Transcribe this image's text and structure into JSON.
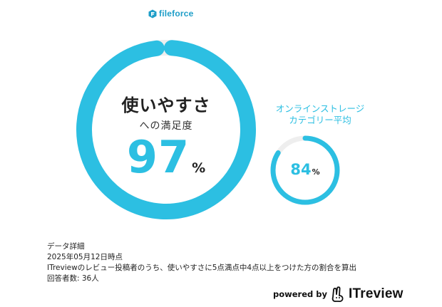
{
  "brand": {
    "logo_text": "fileforce",
    "logo_icon": "fileforce-logo-icon",
    "accent_color": "#2cbfe2"
  },
  "main_metric": {
    "title": "使いやすさ",
    "subtitle": "への満足度",
    "value": "97",
    "unit": "%",
    "percent": 97
  },
  "category_average": {
    "label_line1": "オンラインストレージ",
    "label_line2": "カテゴリー平均",
    "value": "84",
    "unit": "%",
    "percent": 84
  },
  "details": {
    "heading": "データ詳細",
    "date": "2025年05月12日時点",
    "description": "ITreviewのレビュー投稿者のうち、使いやすさに5点満点中4点以上をつけた方の割合を算出",
    "respondents": "回答者数: 36人"
  },
  "footer": {
    "powered_by": "powered by",
    "brand_text": "ITreview",
    "brand_icon": "itreview-logo-icon"
  }
}
